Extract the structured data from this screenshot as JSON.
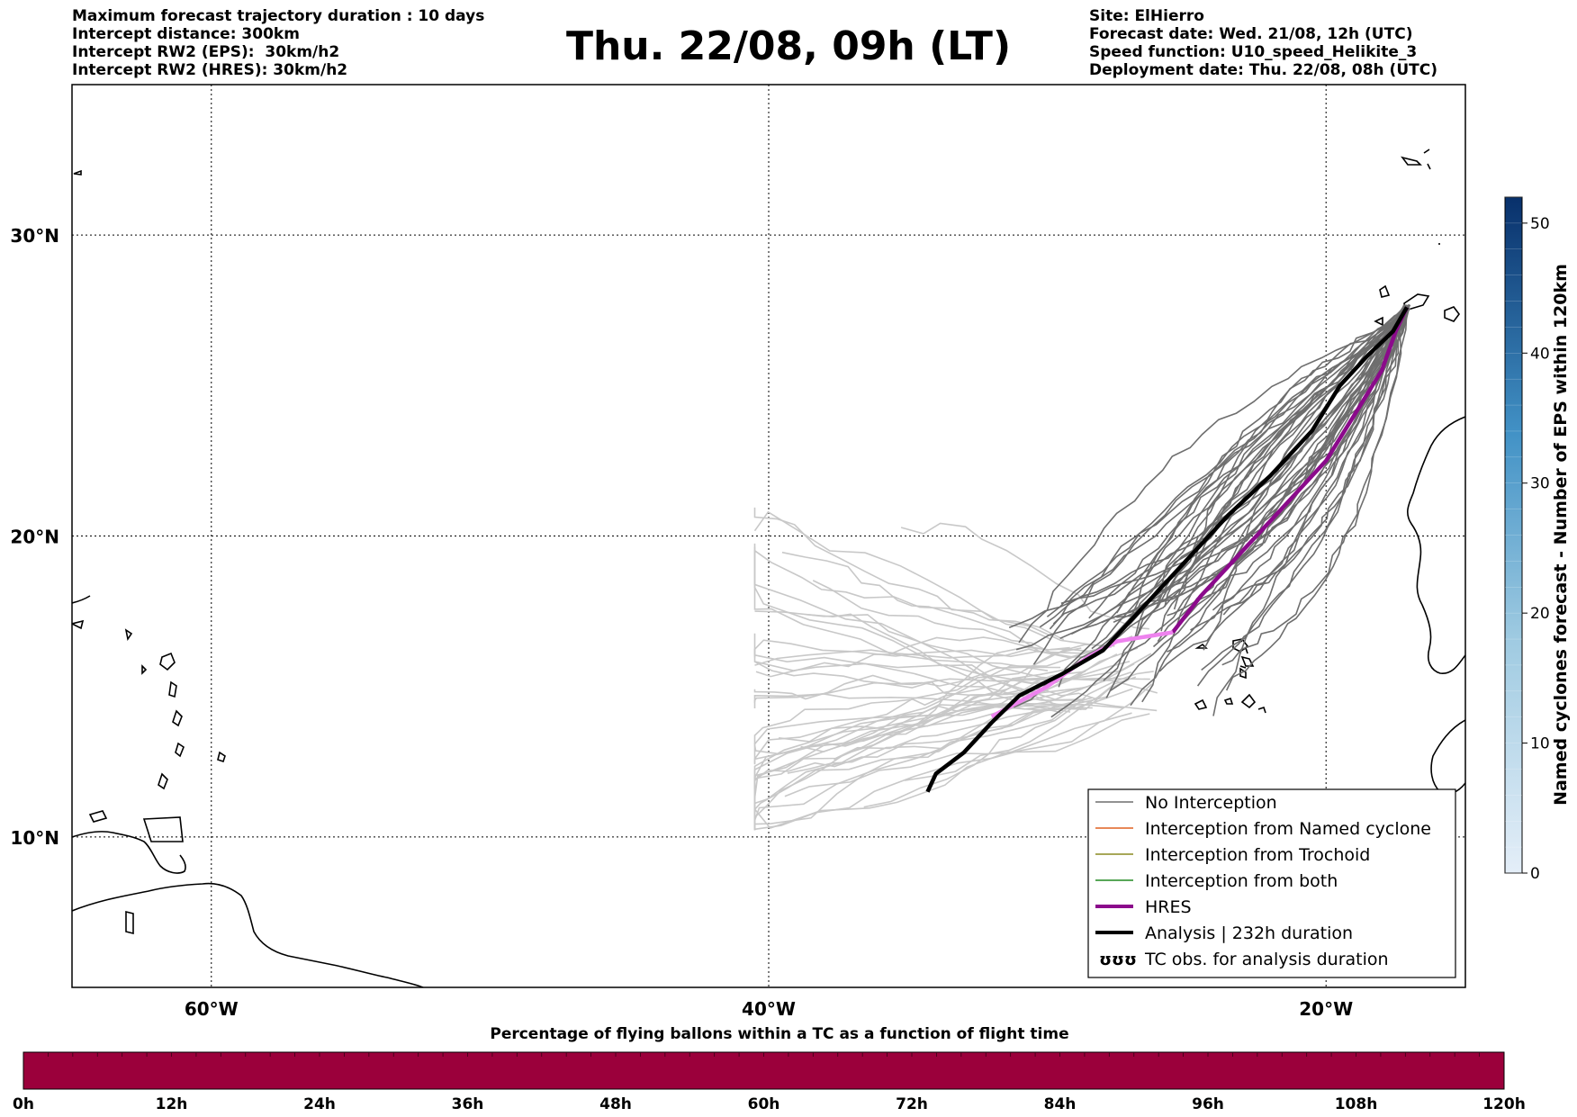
{
  "header": {
    "left_lines": [
      "Maximum forecast trajectory duration : 10 days",
      "Intercept distance: 300km",
      "Intercept RW2 (EPS):  30km/h2",
      "Intercept RW2 (HRES): 30km/h2"
    ],
    "title": "Thu. 22/08, 09h (LT)",
    "right_lines": [
      "Site: ElHierro",
      "Forecast date: Wed. 21/08, 12h (UTC)",
      "Speed function: U10_speed_Helikite_3",
      "Deployment date: Thu. 22/08, 08h (UTC)"
    ]
  },
  "map": {
    "extent": {
      "lon_min": -65,
      "lon_max": -15,
      "lat_min": 5,
      "lat_max": 35
    },
    "lat_ticks": [
      {
        "value": 30,
        "label": "30°N"
      },
      {
        "value": 20,
        "label": "20°N"
      },
      {
        "value": 10,
        "label": "10°N"
      }
    ],
    "lon_ticks": [
      {
        "value": -60,
        "label": "60°W"
      },
      {
        "value": -40,
        "label": "40°W"
      },
      {
        "value": -20,
        "label": "20°W"
      }
    ],
    "gridlines": true
  },
  "legend": {
    "placement": "lower-right",
    "items": [
      {
        "label": "No Interception",
        "color": "#6e6e6e"
      },
      {
        "label": "Interception from Named cyclone",
        "color": "#e06020"
      },
      {
        "label": "Interception from Trochoid",
        "color": "#8a8a20"
      },
      {
        "label": "Interception from both",
        "color": "#208a20"
      },
      {
        "label": "HRES",
        "color": "#8b0a8b"
      },
      {
        "label": "Analysis | 232h duration",
        "color": "#000000"
      },
      {
        "label": "TC obs. for analysis duration",
        "glyph": "ʊʊʊ"
      }
    ]
  },
  "colorbar_right": {
    "label": "Named cyclones forecast - Number of EPS within 120km",
    "min": 0,
    "max": 52,
    "ticks": [
      0,
      10,
      20,
      30,
      40,
      50
    ],
    "color_low": "#e4eef8",
    "color_high": "#08306b"
  },
  "colorbar_bottom": {
    "title": "Percentage of flying ballons within a TC as a function of flight time",
    "ticks": [
      "0h",
      "12h",
      "24h",
      "36h",
      "48h",
      "60h",
      "72h",
      "84h",
      "96h",
      "108h",
      "120h"
    ],
    "color": "#9b003b"
  },
  "tracks": {
    "analysis": {
      "color": "#000000",
      "points": [
        [
          -34.3,
          11.5
        ],
        [
          -34.0,
          12.1
        ],
        [
          -33.0,
          12.8
        ],
        [
          -32.0,
          13.8
        ],
        [
          -31.0,
          14.7
        ],
        [
          -29.5,
          15.4
        ],
        [
          -28.0,
          16.2
        ],
        [
          -26.5,
          17.7
        ],
        [
          -25.0,
          19.2
        ],
        [
          -23.5,
          20.7
        ],
        [
          -22.0,
          22.0
        ],
        [
          -20.5,
          23.5
        ],
        [
          -19.5,
          25.0
        ],
        [
          -18.5,
          26.0
        ],
        [
          -17.6,
          26.8
        ],
        [
          -17.1,
          27.6
        ]
      ]
    },
    "hres": {
      "color": "#8b0a8b",
      "points": [
        [
          -32.0,
          14.0
        ],
        [
          -30.0,
          15.0
        ],
        [
          -28.5,
          16.0
        ],
        [
          -27.5,
          16.5
        ],
        [
          -25.5,
          16.8
        ],
        [
          -24.5,
          18.0
        ],
        [
          -23.0,
          19.5
        ],
        [
          -21.5,
          21.0
        ],
        [
          -20.0,
          22.5
        ],
        [
          -19.0,
          24.0
        ],
        [
          -18.0,
          25.5
        ],
        [
          -17.5,
          26.8
        ],
        [
          -17.1,
          27.6
        ]
      ]
    }
  }
}
